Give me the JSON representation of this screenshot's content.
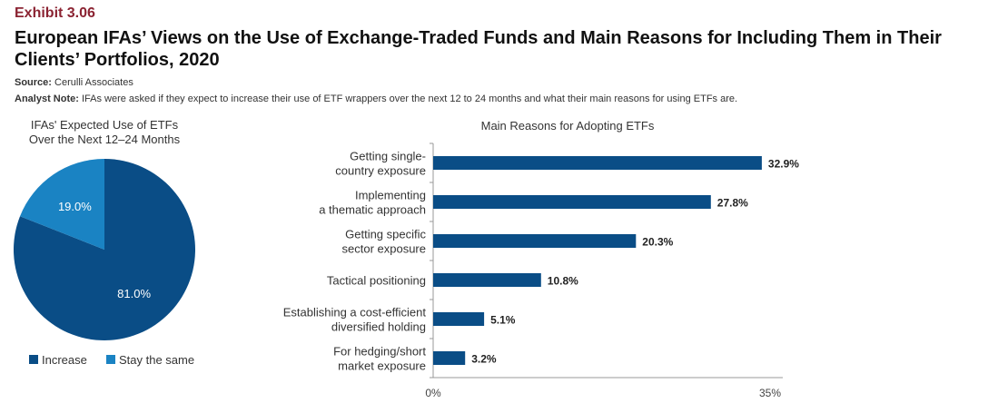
{
  "header": {
    "exhibit": "Exhibit 3.06",
    "title": "European IFAs’ Views on the Use of Exchange-Traded Funds and Main Reasons for Including Them in Their Clients’ Portfolios, 2020",
    "source_label": "Source:",
    "source_value": "Cerulli Associates",
    "note_label": "Analyst Note:",
    "note_value": "IFAs were asked if they expect to increase their use of ETF wrappers over the next 12 to 24 months and what their main reasons for using ETFs are."
  },
  "colors": {
    "dark_blue": "#0a4d86",
    "light_blue": "#1a83c3",
    "accent": "#8b2332"
  },
  "chart_data": [
    {
      "type": "pie",
      "title_line1": "IFAs' Expected Use of ETFs",
      "title_line2": "Over the Next 12–24 Months",
      "slices": [
        {
          "name": "Increase",
          "value": 81.0,
          "label": "81.0%",
          "color": "#0a4d86"
        },
        {
          "name": "Stay the same",
          "value": 19.0,
          "label": "19.0%",
          "color": "#1a83c3"
        }
      ],
      "legend_position": "bottom"
    },
    {
      "type": "bar",
      "orientation": "horizontal",
      "title": "Main Reasons for Adopting ETFs",
      "categories": [
        [
          "Getting single-",
          "country exposure"
        ],
        [
          "Implementing",
          "a thematic approach"
        ],
        [
          "Getting specific",
          "sector exposure"
        ],
        [
          "Tactical positioning"
        ],
        [
          "Establishing a cost-efficient",
          "diversified holding"
        ],
        [
          "For hedging/short",
          "market exposure"
        ]
      ],
      "values": [
        32.9,
        27.8,
        20.3,
        10.8,
        5.1,
        3.2
      ],
      "value_labels": [
        "32.9%",
        "27.8%",
        "20.3%",
        "10.8%",
        "5.1%",
        "3.2%"
      ],
      "xlim": [
        0,
        35
      ],
      "xtick_labels": [
        "0%",
        "35%"
      ],
      "color": "#0a4d86"
    }
  ]
}
